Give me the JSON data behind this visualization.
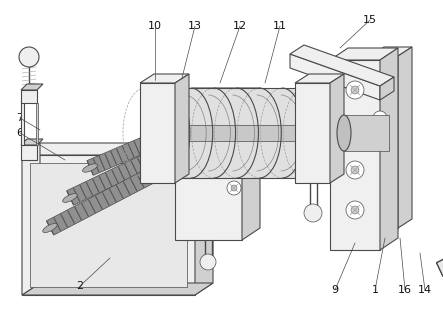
{
  "bg_color": "#ffffff",
  "line_color": "#4a4a4a",
  "light_gray": "#d0d0d0",
  "mid_gray": "#a0a0a0",
  "dark_gray": "#707070",
  "very_light": "#efefef",
  "fill_main": "#f0f0f0",
  "fill_side": "#d8d8d8",
  "fill_dark": "#c0c0c0",
  "roller_fill": "#888888",
  "figsize": [
    4.43,
    3.18
  ],
  "dpi": 100
}
